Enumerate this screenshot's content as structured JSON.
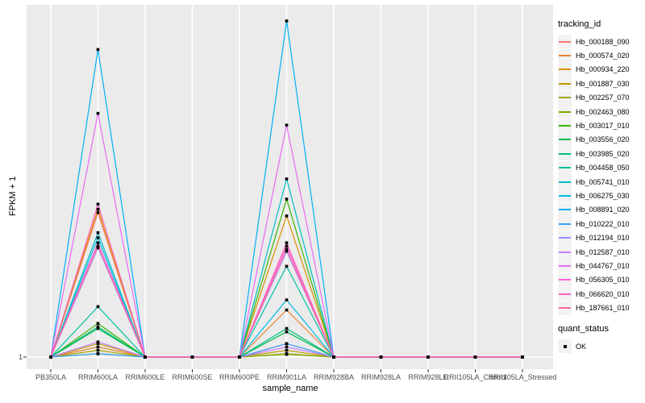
{
  "figure": {
    "y_axis_title": "FPKM + 1",
    "x_axis_title": "sample_name",
    "y_tick_label": "1",
    "panel_bg": "#EBEBEB",
    "grid_color": "#FFFFFF",
    "tick_mark_color": "#333333",
    "tick_text_color": "#4D4D4D",
    "marker_color": "#000000"
  },
  "legend": {
    "tracking_title": "tracking_id",
    "quant_title": "quant_status",
    "quant_label": "OK",
    "quant_marker": "black-square"
  },
  "chart_data": {
    "type": "line",
    "title": "",
    "xlabel": "sample_name",
    "ylabel": "FPKM + 1",
    "grid": true,
    "legend_position": "right",
    "y_axis_visible_ticks": [
      "1"
    ],
    "value_unit": "relative peak height, % of tallest peak (axis shows only baseline FPKM+1 = 1; absolute scale not labeled)",
    "baseline_value": 1,
    "categories": [
      "PB350LA",
      "RRIM600LA",
      "RRIM600LE",
      "RRIM600SE",
      "RRIM600PE",
      "RRIM901LA",
      "RRIM928BA",
      "RRIM928LA",
      "RRIM928LE",
      "RRII105LA_Control",
      "RRII105LA_Stressed"
    ],
    "point_marker": "small black square (quant_status OK) at every sample point",
    "series": [
      {
        "name": "Hb_000188_090",
        "color": "#F8766D",
        "values": [
          0,
          43,
          0,
          0,
          0,
          4,
          0,
          0,
          0,
          0,
          0
        ]
      },
      {
        "name": "Hb_000574_020",
        "color": "#EA8331",
        "values": [
          0,
          3,
          0,
          0,
          0,
          14,
          0,
          0,
          0,
          0,
          0
        ]
      },
      {
        "name": "Hb_000934_220",
        "color": "#D89000",
        "values": [
          0,
          44,
          0,
          0,
          0,
          42,
          0,
          0,
          0,
          0,
          0
        ]
      },
      {
        "name": "Hb_001887_030",
        "color": "#C09B00",
        "values": [
          0,
          4,
          0,
          0,
          0,
          2,
          0,
          0,
          0,
          0,
          0
        ]
      },
      {
        "name": "Hb_002257_070",
        "color": "#A3A500",
        "values": [
          0,
          2,
          0,
          0,
          0,
          1,
          0,
          0,
          0,
          0,
          0
        ]
      },
      {
        "name": "Hb_002463_080",
        "color": "#7CAE00",
        "values": [
          0,
          1,
          0,
          0,
          0,
          0.8,
          0,
          0,
          0,
          0,
          0
        ]
      },
      {
        "name": "Hb_003017_010",
        "color": "#39B600",
        "values": [
          0,
          10,
          0,
          0,
          0,
          47,
          0,
          0,
          0,
          0,
          0
        ]
      },
      {
        "name": "Hb_003556_020",
        "color": "#00BB4E",
        "values": [
          0,
          8.5,
          0,
          0,
          0,
          7.5,
          0,
          0,
          0,
          0,
          0
        ]
      },
      {
        "name": "Hb_003985_020",
        "color": "#00BF7D",
        "values": [
          0,
          9,
          0,
          0,
          0,
          8.5,
          0,
          0,
          0,
          0,
          0
        ]
      },
      {
        "name": "Hb_004458_050",
        "color": "#00C1A3",
        "values": [
          0,
          15,
          0,
          0,
          0,
          27,
          0,
          0,
          0,
          0,
          0
        ]
      },
      {
        "name": "Hb_005741_010",
        "color": "#00BFC4",
        "values": [
          0,
          37,
          0,
          0,
          0,
          53,
          0,
          0,
          0,
          0,
          0
        ]
      },
      {
        "name": "Hb_006275_030",
        "color": "#00BAE0",
        "values": [
          0,
          35.5,
          0,
          0,
          0,
          17,
          0,
          0,
          0,
          0,
          0
        ]
      },
      {
        "name": "Hb_008891_020",
        "color": "#00B0F6",
        "values": [
          0,
          91.5,
          0,
          0,
          0,
          100,
          0,
          0,
          0,
          0,
          0
        ]
      },
      {
        "name": "Hb_010222_010",
        "color": "#35A2FF",
        "values": [
          0,
          1,
          0,
          0,
          0,
          4,
          0,
          0,
          0,
          0,
          0
        ]
      },
      {
        "name": "Hb_012194_010",
        "color": "#9590FF",
        "values": [
          0,
          32.5,
          0,
          0,
          0,
          31.5,
          0,
          0,
          0,
          0,
          0
        ]
      },
      {
        "name": "Hb_012587_010",
        "color": "#C77CFF",
        "values": [
          0,
          4.5,
          0,
          0,
          0,
          3,
          0,
          0,
          0,
          0,
          0
        ]
      },
      {
        "name": "Hb_044767_010",
        "color": "#E76BF3",
        "values": [
          0,
          72.5,
          0,
          0,
          0,
          69,
          0,
          0,
          0,
          0,
          0
        ]
      },
      {
        "name": "Hb_056305_010",
        "color": "#FA62DB",
        "values": [
          0,
          34,
          0,
          0,
          0,
          33,
          0,
          0,
          0,
          0,
          0
        ]
      },
      {
        "name": "Hb_066620_010",
        "color": "#FF62BC",
        "values": [
          0,
          45.5,
          0,
          0,
          0,
          34,
          0,
          0,
          0,
          0,
          0
        ]
      },
      {
        "name": "Hb_187661_010",
        "color": "#FF6A98",
        "values": [
          0,
          33,
          0,
          0,
          0,
          32,
          0,
          0,
          0,
          0,
          0
        ]
      }
    ]
  }
}
